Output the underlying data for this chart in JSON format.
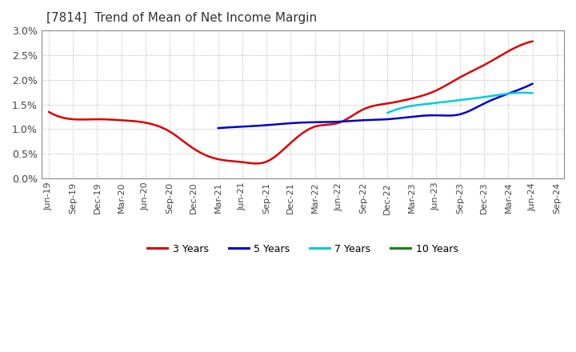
{
  "title": "[7814]  Trend of Mean of Net Income Margin",
  "background_color": "#ffffff",
  "plot_background_color": "#ffffff",
  "grid_color": "#999999",
  "x_labels": [
    "Jun-19",
    "Sep-19",
    "Dec-19",
    "Mar-20",
    "Jun-20",
    "Sep-20",
    "Dec-20",
    "Mar-21",
    "Jun-21",
    "Sep-21",
    "Dec-21",
    "Mar-22",
    "Jun-22",
    "Sep-22",
    "Dec-22",
    "Mar-23",
    "Jun-23",
    "Sep-23",
    "Dec-23",
    "Mar-24",
    "Jun-24",
    "Sep-24"
  ],
  "ylim": [
    0.0,
    0.03
  ],
  "yticks": [
    0.0,
    0.005,
    0.01,
    0.015,
    0.02,
    0.025,
    0.03
  ],
  "ytick_labels": [
    "0.0%",
    "0.5%",
    "1.0%",
    "1.5%",
    "2.0%",
    "2.5%",
    "3.0%"
  ],
  "series": {
    "3 Years": {
      "color": "#dd0000",
      "linewidth": 1.8,
      "data_x": [
        0,
        1,
        2,
        3,
        4,
        5,
        6,
        7,
        8,
        9,
        10,
        11,
        12,
        13,
        14,
        15,
        16,
        17,
        18,
        19,
        20
      ],
      "data_y": [
        0.0135,
        0.012,
        0.012,
        0.0118,
        0.0113,
        0.0095,
        0.006,
        0.0039,
        0.0033,
        0.0034,
        0.0072,
        0.0105,
        0.0113,
        0.014,
        0.0152,
        0.0162,
        0.0178,
        0.0205,
        0.023,
        0.0258,
        0.0278
      ]
    },
    "5 Years": {
      "color": "#0000cc",
      "linewidth": 1.8,
      "data_x": [
        7,
        8,
        9,
        10,
        11,
        12,
        13,
        14,
        15,
        16,
        17,
        18,
        19,
        20
      ],
      "data_y": [
        0.0102,
        0.0105,
        0.0108,
        0.0112,
        0.0114,
        0.0115,
        0.0118,
        0.012,
        0.0125,
        0.0128,
        0.013,
        0.0152,
        0.0172,
        0.0192
      ]
    },
    "7 Years": {
      "color": "#00ccdd",
      "linewidth": 1.8,
      "data_x": [
        14,
        15,
        16,
        17,
        18,
        19,
        20
      ],
      "data_y": [
        0.0133,
        0.0147,
        0.0153,
        0.0159,
        0.0165,
        0.0172,
        0.0173
      ]
    },
    "10 Years": {
      "color": "#008800",
      "linewidth": 1.8,
      "data_x": [],
      "data_y": []
    }
  },
  "legend_entries": [
    "3 Years",
    "5 Years",
    "7 Years",
    "10 Years"
  ],
  "legend_colors": [
    "#dd0000",
    "#0000cc",
    "#00ccdd",
    "#008800"
  ],
  "title_fontsize": 11,
  "tick_fontsize": 8
}
